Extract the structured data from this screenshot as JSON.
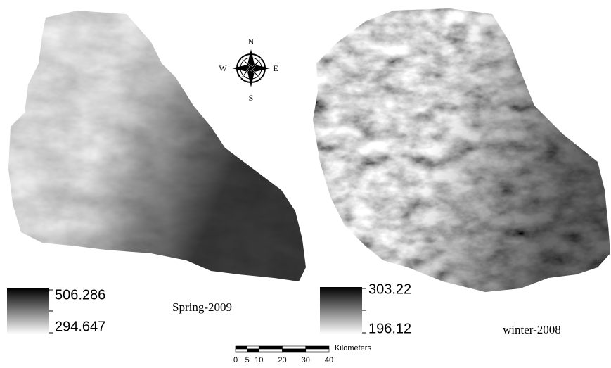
{
  "compass": {
    "north": "N",
    "south": "S",
    "east": "E",
    "west": "W"
  },
  "maps": [
    {
      "caption": "Spring-2009",
      "legend": {
        "high": "506.286",
        "low": "294.647"
      }
    },
    {
      "caption": "winter-2008",
      "legend": {
        "high": "303.22",
        "low": "196.12"
      }
    }
  ],
  "scale_bar": {
    "unit": "Kilometers",
    "ticks": [
      0,
      5,
      10,
      20,
      30,
      40
    ]
  }
}
